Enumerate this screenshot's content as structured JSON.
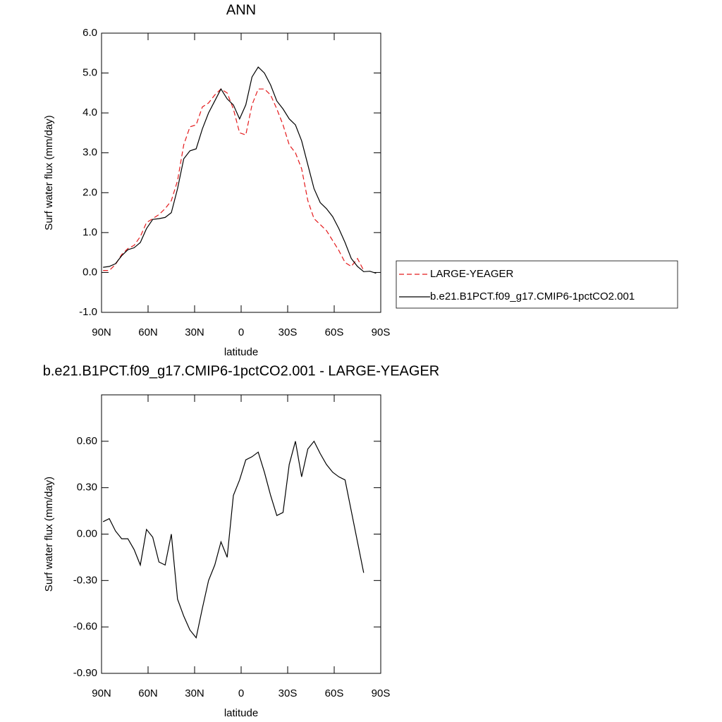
{
  "chart_data": [
    {
      "type": "line",
      "title": "ANN",
      "xlabel": "latitude",
      "ylabel": "Surf water flux (mm/day)",
      "x": [
        89,
        85,
        81,
        77,
        73,
        69,
        65,
        61,
        57,
        53,
        49,
        45,
        41,
        37,
        33,
        29,
        25,
        21,
        17,
        13,
        9,
        5,
        1,
        -3,
        -7,
        -11,
        -15,
        -19,
        -23,
        -27,
        -31,
        -35,
        -39,
        -43,
        -47,
        -51,
        -55,
        -59,
        -63,
        -67,
        -71,
        -75,
        -79,
        -83,
        -87
      ],
      "xlim": [
        90,
        -90
      ],
      "xticks": [
        {
          "value": 90,
          "label": "90N"
        },
        {
          "value": 60,
          "label": "60N"
        },
        {
          "value": 30,
          "label": "30N"
        },
        0,
        {
          "value": -30,
          "label": "30S"
        },
        {
          "value": -60,
          "label": "60S"
        },
        {
          "value": -90,
          "label": "90S"
        }
      ],
      "ylim": [
        -1,
        6
      ],
      "yticks": [
        {
          "value": -1,
          "label": "-1.0"
        },
        {
          "value": 0,
          "label": "0.0"
        },
        {
          "value": 1,
          "label": "1.0"
        },
        {
          "value": 2,
          "label": "2.0"
        },
        {
          "value": 3,
          "label": "3.0"
        },
        {
          "value": 4,
          "label": "4.0"
        },
        {
          "value": 5,
          "label": "5.0"
        },
        {
          "value": 6,
          "label": "6.0"
        }
      ],
      "legend": "outside right",
      "series": [
        {
          "name": "LARGE-YEAGER",
          "color": "#e41a1c",
          "line_style": "dashed",
          "values": [
            0.05,
            0.05,
            0.2,
            0.45,
            0.6,
            0.68,
            0.9,
            1.25,
            1.35,
            1.45,
            1.6,
            1.8,
            2.3,
            3.2,
            3.65,
            3.7,
            4.15,
            4.25,
            4.45,
            4.6,
            4.5,
            4.1,
            3.5,
            3.45,
            4.2,
            4.6,
            4.6,
            4.45,
            4.1,
            3.7,
            3.2,
            3.0,
            2.6,
            1.8,
            1.35,
            1.2,
            1.05,
            0.8,
            0.55,
            0.25,
            0.15,
            0.35,
            0.05,
            null,
            null
          ]
        },
        {
          "name": "b.e21.B1PCT.f09_g17.CMIP6-1pctCO2.001",
          "color": "#000000",
          "line_style": "solid",
          "values": [
            0.13,
            0.15,
            0.22,
            0.42,
            0.57,
            0.62,
            0.75,
            1.1,
            1.33,
            1.35,
            1.38,
            1.5,
            2.1,
            2.85,
            3.05,
            3.1,
            3.6,
            4.0,
            4.3,
            4.6,
            4.35,
            4.2,
            3.85,
            4.2,
            4.9,
            5.15,
            5.0,
            4.7,
            4.3,
            4.1,
            3.85,
            3.7,
            3.3,
            2.7,
            2.1,
            1.75,
            1.6,
            1.4,
            1.1,
            0.75,
            0.35,
            0.15,
            0.02,
            0.03,
            -0.02
          ]
        }
      ]
    },
    {
      "type": "line",
      "title": "b.e21.B1PCT.f09_g17.CMIP6-1pctCO2.001 - LARGE-YEAGER",
      "xlabel": "latitude",
      "ylabel": "Surf water flux (mm/day)",
      "x": [
        89,
        85,
        81,
        77,
        73,
        69,
        65,
        61,
        57,
        53,
        49,
        45,
        41,
        37,
        33,
        29,
        25,
        21,
        17,
        13,
        9,
        5,
        1,
        -3,
        -7,
        -11,
        -15,
        -19,
        -23,
        -27,
        -31,
        -35,
        -39,
        -43,
        -47,
        -51,
        -55,
        -59,
        -63,
        -67,
        -71,
        -75,
        -79,
        -83,
        -87
      ],
      "xlim": [
        90,
        -90
      ],
      "xticks": [
        {
          "value": 90,
          "label": "90N"
        },
        {
          "value": 60,
          "label": "60N"
        },
        {
          "value": 30,
          "label": "30N"
        },
        0,
        {
          "value": -30,
          "label": "30S"
        },
        {
          "value": -60,
          "label": "60S"
        },
        {
          "value": -90,
          "label": "90S"
        }
      ],
      "ylim": [
        -0.9,
        0.9
      ],
      "yticks": [
        {
          "value": -0.9,
          "label": "-0.90"
        },
        {
          "value": -0.6,
          "label": "-0.60"
        },
        {
          "value": -0.3,
          "label": "-0.30"
        },
        {
          "value": 0,
          "label": "0.00"
        },
        {
          "value": 0.3,
          "label": "0.30"
        },
        {
          "value": 0.6,
          "label": "0.60"
        }
      ],
      "series": [
        {
          "color": "#000000",
          "line_style": "solid",
          "values": [
            0.08,
            0.1,
            0.02,
            -0.03,
            -0.03,
            -0.1,
            -0.2,
            0.03,
            -0.02,
            -0.18,
            -0.2,
            0.0,
            -0.42,
            -0.53,
            -0.62,
            -0.67,
            -0.48,
            -0.3,
            -0.2,
            -0.05,
            -0.15,
            0.25,
            0.35,
            0.48,
            0.5,
            0.53,
            0.4,
            0.25,
            0.12,
            0.14,
            0.45,
            0.6,
            0.37,
            0.55,
            0.6,
            0.52,
            0.45,
            0.4,
            0.37,
            0.35,
            0.15,
            -0.05,
            -0.25,
            null,
            null
          ]
        }
      ]
    }
  ]
}
